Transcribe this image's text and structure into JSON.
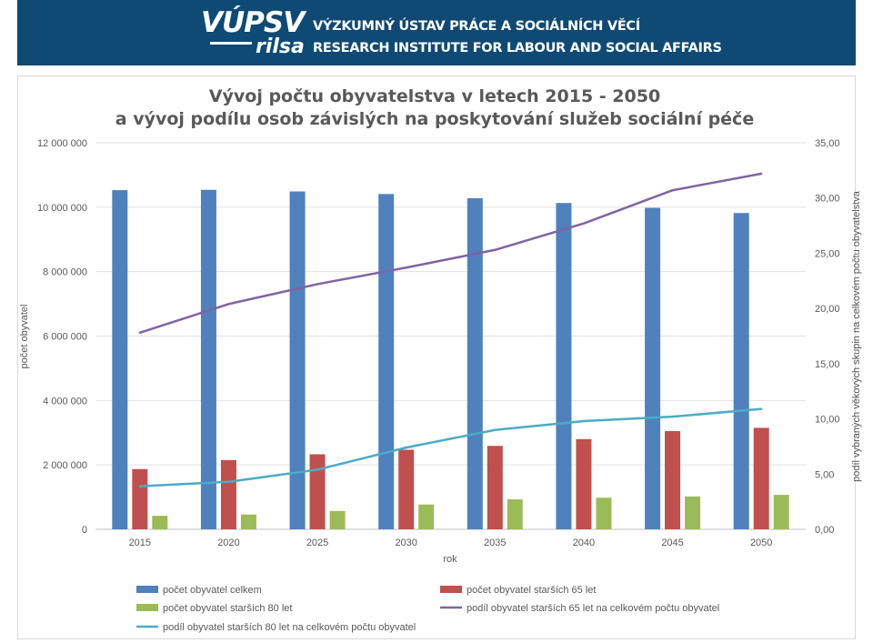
{
  "header": {
    "logo_main": "VÚPSV",
    "logo_sub": "rilsa",
    "institute_cz": "VÝZKUMNÝ ÚSTAV PRÁCE A SOCIÁLNÍCH VĚCÍ",
    "institute_en": "RESEARCH INSTITUTE FOR LABOUR AND SOCIAL AFFAIRS",
    "background_color": "#0f4a74"
  },
  "chart_data": {
    "type": "bar",
    "title_line1": "Vývoj počtu obyvatelstva v letech 2015 - 2050",
    "title_line2": "a vývoj podílu osob závislých na poskytování služeb sociální péče",
    "xlabel": "rok",
    "ylabel_left": "počet obyvatel",
    "ylabel_right": "podíl vybraných věkových skupin na celkovém počtu obyvatelstva",
    "categories": [
      "2015",
      "2020",
      "2025",
      "2030",
      "2035",
      "2040",
      "2045",
      "2050"
    ],
    "ylim_left": [
      0,
      12000000
    ],
    "ylim_right": [
      0,
      35
    ],
    "left_ticks": [
      "0",
      "2 000 000",
      "4 000 000",
      "6 000 000",
      "8 000 000",
      "10 000 000",
      "12 000 000"
    ],
    "right_ticks": [
      "0,00",
      "5,00",
      "10,00",
      "15,00",
      "20,00",
      "25,00",
      "30,00",
      "35,00"
    ],
    "grid": true,
    "legend_position": "bottom",
    "bar_series": [
      {
        "name": "počet obyvatel celkem",
        "color": "#4f81bd",
        "values": [
          10530000,
          10540000,
          10490000,
          10410000,
          10280000,
          10130000,
          9980000,
          9820000
        ]
      },
      {
        "name": "počet obyvatel starších 65 let",
        "color": "#c0504d",
        "values": [
          1870000,
          2150000,
          2330000,
          2470000,
          2590000,
          2800000,
          3050000,
          3150000
        ]
      },
      {
        "name": "počet obyvatel starších 80 let",
        "color": "#9bbb59",
        "values": [
          420000,
          460000,
          570000,
          770000,
          930000,
          980000,
          1020000,
          1070000
        ]
      }
    ],
    "line_series": [
      {
        "name": "podíl obyvatel starších 65 let na celkovém počtu obyvatel",
        "color": "#8064a2",
        "values": [
          17.8,
          20.4,
          22.2,
          23.7,
          25.3,
          27.7,
          30.7,
          32.2
        ]
      },
      {
        "name": "podíl obyvatel starších 80 let na celkovém počtu obyvatel",
        "color": "#4bacc6",
        "values": [
          3.9,
          4.3,
          5.4,
          7.4,
          9.0,
          9.8,
          10.2,
          10.9
        ]
      }
    ]
  }
}
